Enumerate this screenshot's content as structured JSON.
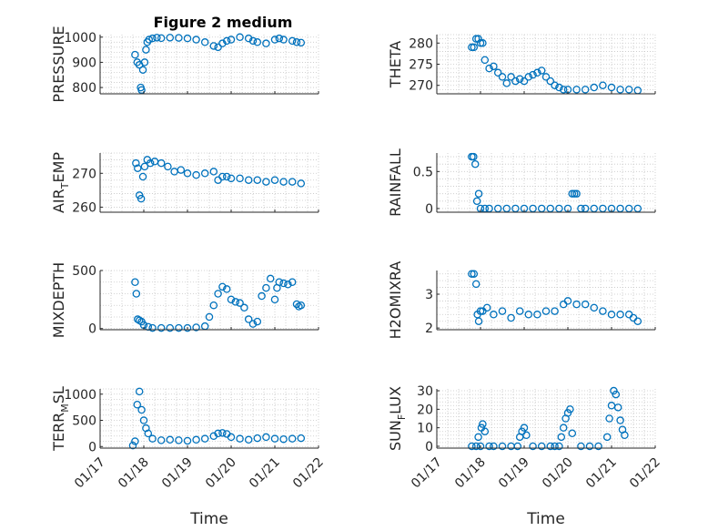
{
  "figure": {
    "title": "Figure 2 medium"
  },
  "colors": {
    "marker": "#0072BD",
    "axis": "#262626"
  },
  "x_ticks": [
    "01/17",
    "01/18",
    "01/19",
    "01/20",
    "01/21",
    "01/22"
  ],
  "x_label": "Time",
  "chart_data": [
    {
      "type": "scatter",
      "id": "pressure",
      "title": "Figure 2 medium",
      "ylabel": "PRESSURE",
      "xlabel": "",
      "xlim": [
        17,
        22
      ],
      "ylim": [
        775,
        1010
      ],
      "yticks": [
        800,
        900,
        1000
      ],
      "ytick_labels": [
        "800",
        "900",
        "1000"
      ],
      "x": [
        17.8,
        17.85,
        17.9,
        17.93,
        17.95,
        17.98,
        18.02,
        18.05,
        18.08,
        18.12,
        18.2,
        18.3,
        18.4,
        18.6,
        18.8,
        19.0,
        19.2,
        19.4,
        19.6,
        19.7,
        19.8,
        19.9,
        20.0,
        20.2,
        20.4,
        20.5,
        20.6,
        20.8,
        21.0,
        21.1,
        21.2,
        21.4,
        21.5,
        21.6
      ],
      "y": [
        930,
        900,
        890,
        800,
        790,
        870,
        900,
        950,
        980,
        990,
        995,
        998,
        996,
        998,
        997,
        995,
        990,
        980,
        965,
        960,
        975,
        985,
        990,
        1000,
        995,
        985,
        980,
        975,
        990,
        995,
        990,
        985,
        980,
        978
      ]
    },
    {
      "type": "scatter",
      "id": "theta",
      "ylabel": "THETA",
      "xlabel": "",
      "xlim": [
        17,
        22
      ],
      "ylim": [
        268,
        282
      ],
      "yticks": [
        270,
        275,
        280
      ],
      "ytick_labels": [
        "270",
        "275",
        "280"
      ],
      "x": [
        17.8,
        17.85,
        17.9,
        17.95,
        18.0,
        18.05,
        18.1,
        18.2,
        18.3,
        18.4,
        18.5,
        18.6,
        18.7,
        18.8,
        18.9,
        19.0,
        19.1,
        19.2,
        19.3,
        19.4,
        19.5,
        19.6,
        19.7,
        19.8,
        19.9,
        20.0,
        20.2,
        20.4,
        20.6,
        20.8,
        21.0,
        21.2,
        21.4,
        21.6
      ],
      "y": [
        279,
        279,
        281,
        281,
        280,
        280,
        276,
        274,
        274.5,
        273,
        272,
        270.5,
        272,
        271,
        271.5,
        271,
        272,
        272.5,
        273,
        273.5,
        272,
        271,
        270,
        269.5,
        269,
        269,
        269,
        269,
        269.5,
        270,
        269.5,
        269,
        269,
        268.8
      ]
    },
    {
      "type": "scatter",
      "id": "air_temp",
      "ylabel": "AIR_TEMP",
      "xlabel": "",
      "xlim": [
        17,
        22
      ],
      "ylim": [
        258.5,
        276
      ],
      "yticks": [
        260,
        270
      ],
      "ytick_labels": [
        "260",
        "270"
      ],
      "x": [
        17.82,
        17.86,
        17.9,
        17.94,
        17.98,
        18.02,
        18.08,
        18.15,
        18.25,
        18.4,
        18.55,
        18.7,
        18.85,
        19.0,
        19.2,
        19.4,
        19.6,
        19.7,
        19.8,
        19.9,
        20.0,
        20.2,
        20.4,
        20.6,
        20.8,
        21.0,
        21.2,
        21.4,
        21.6
      ],
      "y": [
        273,
        271.5,
        263.5,
        262.5,
        269,
        272,
        274,
        273,
        273.5,
        273,
        272,
        270.5,
        271,
        270,
        269.5,
        270,
        270.5,
        268,
        269,
        269,
        268.5,
        268.5,
        268,
        268,
        267.5,
        268,
        267.5,
        267.5,
        267
      ]
    },
    {
      "type": "scatter",
      "id": "rainfall",
      "ylabel": "RAINFALL",
      "xlabel": "",
      "xlim": [
        17,
        22
      ],
      "ylim": [
        -0.05,
        0.75
      ],
      "yticks": [
        0,
        0.5
      ],
      "ytick_labels": [
        "0",
        "0.5"
      ],
      "x": [
        17.8,
        17.84,
        17.88,
        17.92,
        17.96,
        18.0,
        18.1,
        18.2,
        18.4,
        18.6,
        18.8,
        19.0,
        19.2,
        19.4,
        19.6,
        19.8,
        20.0,
        20.1,
        20.15,
        20.2,
        20.3,
        20.4,
        20.6,
        20.8,
        21.0,
        21.2,
        21.4,
        21.6
      ],
      "y": [
        0.7,
        0.7,
        0.6,
        0.1,
        0.2,
        0,
        0,
        0,
        0,
        0,
        0,
        0,
        0,
        0,
        0,
        0,
        0,
        0.2,
        0.2,
        0.2,
        0,
        0,
        0,
        0,
        0,
        0,
        0,
        0
      ]
    },
    {
      "type": "scatter",
      "id": "mixdepth",
      "ylabel": "MIXDEPTH",
      "xlabel": "",
      "xlim": [
        17,
        22
      ],
      "ylim": [
        -10,
        500
      ],
      "yticks": [
        0,
        500
      ],
      "ytick_labels": [
        "0",
        "500"
      ],
      "x": [
        17.8,
        17.83,
        17.86,
        17.9,
        17.95,
        18.0,
        18.1,
        18.2,
        18.4,
        18.6,
        18.8,
        19.0,
        19.2,
        19.4,
        19.5,
        19.6,
        19.7,
        19.8,
        19.9,
        20.0,
        20.1,
        20.2,
        20.3,
        20.4,
        20.5,
        20.6,
        20.7,
        20.8,
        20.9,
        21.0,
        21.05,
        21.1,
        21.2,
        21.3,
        21.4,
        21.5,
        21.55,
        21.6
      ],
      "y": [
        400,
        300,
        80,
        70,
        60,
        30,
        15,
        5,
        5,
        5,
        5,
        5,
        10,
        20,
        100,
        200,
        300,
        360,
        340,
        250,
        230,
        220,
        180,
        80,
        40,
        60,
        280,
        350,
        430,
        250,
        350,
        400,
        390,
        380,
        400,
        210,
        190,
        200
      ]
    },
    {
      "type": "scatter",
      "id": "h2omixra",
      "ylabel": "H2OMIXRA",
      "xlabel": "",
      "xlim": [
        17,
        22
      ],
      "ylim": [
        1.95,
        3.7
      ],
      "yticks": [
        2,
        3
      ],
      "ytick_labels": [
        "2",
        "3"
      ],
      "x": [
        17.8,
        17.85,
        17.9,
        17.93,
        17.96,
        18.0,
        18.05,
        18.15,
        18.3,
        18.5,
        18.7,
        18.9,
        19.1,
        19.3,
        19.5,
        19.7,
        19.9,
        20.0,
        20.2,
        20.4,
        20.6,
        20.8,
        21.0,
        21.2,
        21.4,
        21.5,
        21.6
      ],
      "y": [
        3.6,
        3.6,
        3.3,
        2.4,
        2.2,
        2.5,
        2.5,
        2.6,
        2.4,
        2.5,
        2.3,
        2.5,
        2.4,
        2.4,
        2.5,
        2.5,
        2.7,
        2.8,
        2.7,
        2.7,
        2.6,
        2.5,
        2.4,
        2.4,
        2.4,
        2.3,
        2.2
      ]
    },
    {
      "type": "scatter",
      "id": "terr_msl",
      "ylabel": "TERR_MSL",
      "xlabel": "Time",
      "xlim": [
        17,
        22
      ],
      "ylim": [
        -30,
        1100
      ],
      "yticks": [
        0,
        500,
        1000
      ],
      "ytick_labels": [
        "0",
        "500",
        "1000"
      ],
      "x": [
        17.75,
        17.8,
        17.85,
        17.9,
        17.95,
        18.0,
        18.05,
        18.1,
        18.2,
        18.4,
        18.6,
        18.8,
        19.0,
        19.2,
        19.4,
        19.6,
        19.7,
        19.8,
        19.9,
        20.0,
        20.2,
        20.4,
        20.6,
        20.8,
        21.0,
        21.2,
        21.4,
        21.6
      ],
      "y": [
        20,
        100,
        800,
        1050,
        700,
        500,
        350,
        250,
        150,
        120,
        130,
        120,
        110,
        130,
        150,
        200,
        250,
        260,
        240,
        180,
        150,
        130,
        160,
        180,
        150,
        140,
        150,
        160
      ]
    },
    {
      "type": "scatter",
      "id": "sun_flux",
      "ylabel": "SUN_FLUX",
      "xlabel": "Time",
      "xlim": [
        17,
        22
      ],
      "ylim": [
        -1,
        31
      ],
      "yticks": [
        0,
        10,
        20,
        30
      ],
      "ytick_labels": [
        "0",
        "10",
        "20",
        "30"
      ],
      "x": [
        17.8,
        17.9,
        18.0,
        17.95,
        18.02,
        18.05,
        18.1,
        18.2,
        18.3,
        18.5,
        18.7,
        18.85,
        18.9,
        18.95,
        19.0,
        19.05,
        19.2,
        19.4,
        19.6,
        19.7,
        19.8,
        19.85,
        19.9,
        19.95,
        20.0,
        20.05,
        20.1,
        20.3,
        20.5,
        20.7,
        20.9,
        20.95,
        21.0,
        21.05,
        21.1,
        21.15,
        21.2,
        21.25,
        21.3
      ],
      "y": [
        0,
        0,
        0,
        5,
        10,
        12,
        8,
        0,
        0,
        0,
        0,
        0,
        5,
        8,
        10,
        6,
        0,
        0,
        0,
        0,
        0,
        5,
        10,
        15,
        18,
        20,
        7,
        0,
        0,
        0,
        5,
        15,
        22,
        30,
        28,
        21,
        14,
        9,
        6
      ]
    }
  ]
}
